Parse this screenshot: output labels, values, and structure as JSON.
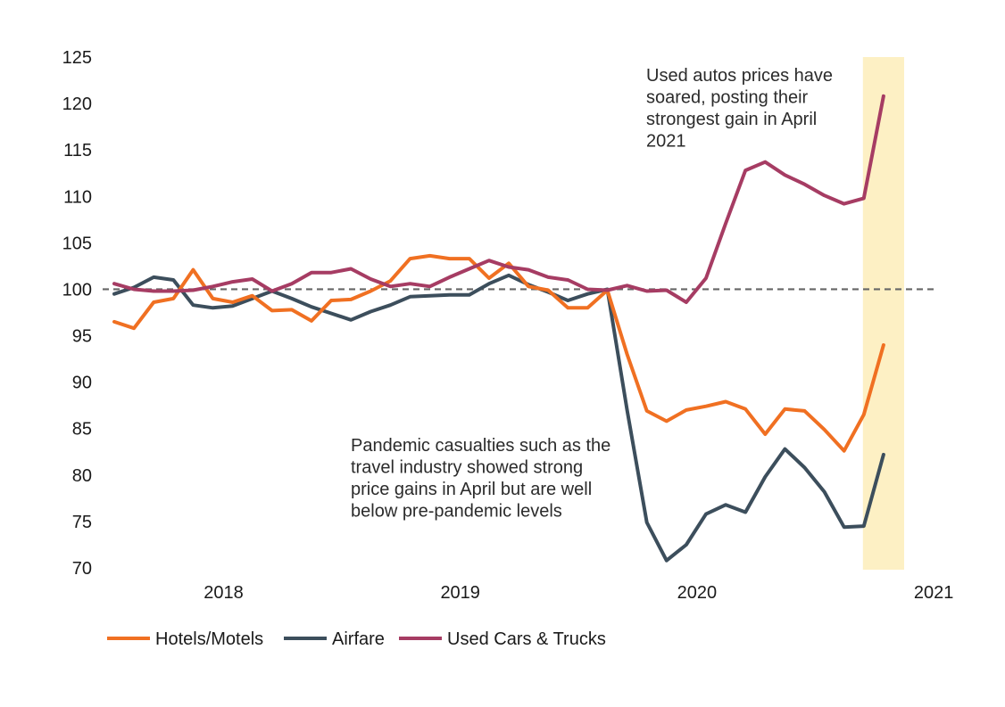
{
  "chart_data": {
    "type": "line",
    "title": "",
    "xlabel": "",
    "ylabel": "",
    "ylim": [
      70,
      125
    ],
    "y_ticks": [
      125,
      120,
      115,
      110,
      105,
      100,
      95,
      90,
      85,
      80,
      75,
      70
    ],
    "x_tick_labels": [
      "2018",
      "2019",
      "2020",
      "2021"
    ],
    "x_tick_positions": [
      5,
      17,
      29,
      41
    ],
    "reference_line": {
      "value": 100,
      "style": "dashed",
      "color": "#666666"
    },
    "highlight_band": {
      "from_index": 38,
      "to_index": 40,
      "color": "#fdf0c4"
    },
    "x": [
      0,
      1,
      2,
      3,
      4,
      5,
      6,
      7,
      8,
      9,
      10,
      11,
      12,
      13,
      14,
      15,
      16,
      17,
      18,
      19,
      20,
      21,
      22,
      23,
      24,
      25,
      26,
      27,
      28,
      29,
      30,
      31,
      32,
      33,
      34,
      35,
      36,
      37,
      38,
      39
    ],
    "series": [
      {
        "name": "Hotels/Motels",
        "color": "#f07022",
        "values": [
          96.5,
          95.8,
          98.6,
          99.0,
          102.1,
          99.0,
          98.6,
          99.3,
          97.7,
          97.8,
          96.6,
          98.8,
          98.9,
          99.8,
          100.9,
          103.3,
          103.6,
          103.3,
          103.3,
          101.2,
          102.8,
          100.3,
          99.9,
          98.0,
          98.0,
          99.9,
          93.0,
          86.9,
          85.8,
          87.0,
          87.4,
          87.9,
          87.1,
          84.4,
          87.1,
          86.9,
          84.9,
          82.6,
          86.5,
          94.0
        ]
      },
      {
        "name": "Airfare",
        "color": "#3c4e5c",
        "values": [
          99.5,
          100.2,
          101.3,
          101.0,
          98.3,
          98.0,
          98.2,
          99.0,
          99.8,
          99.0,
          98.1,
          97.4,
          96.7,
          97.6,
          98.3,
          99.2,
          99.3,
          99.4,
          99.4,
          100.6,
          101.5,
          100.5,
          99.7,
          98.8,
          99.5,
          100.0,
          87.0,
          74.9,
          70.8,
          72.5,
          75.8,
          76.8,
          76.0,
          79.8,
          82.8,
          80.8,
          78.2,
          74.4,
          74.5,
          82.2
        ]
      },
      {
        "name": "Used Cars & Trucks",
        "color": "#a63c63",
        "values": [
          100.6,
          100.0,
          99.8,
          99.8,
          99.9,
          100.3,
          100.8,
          101.1,
          99.8,
          100.6,
          101.8,
          101.8,
          102.2,
          101.1,
          100.3,
          100.6,
          100.3,
          101.3,
          102.2,
          103.1,
          102.4,
          102.1,
          101.3,
          101.0,
          100.0,
          99.9,
          100.4,
          99.8,
          99.9,
          98.6,
          101.2,
          107.1,
          112.8,
          113.7,
          112.3,
          111.3,
          110.1,
          109.2,
          109.8,
          120.8
        ]
      }
    ],
    "annotations": [
      {
        "lines": [
          "Used autos prices have",
          "soared, posting their",
          "strongest gain in April",
          "2021"
        ],
        "x": 724,
        "y": 91
      },
      {
        "lines": [
          "Pandemic casualties such as the",
          "travel industry showed strong",
          "price gains in April but are well",
          "below pre-pandemic levels"
        ],
        "x": 393,
        "y": 506
      }
    ],
    "legend": {
      "position": "bottom-left"
    }
  }
}
